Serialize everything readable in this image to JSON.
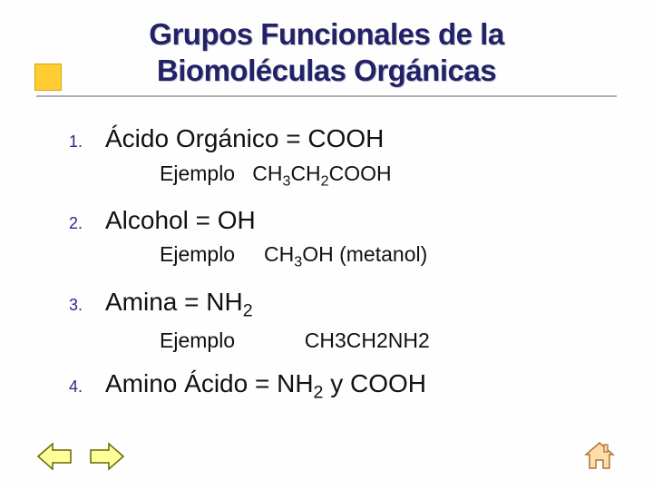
{
  "title": {
    "line1": "Grupos Funcionales de la",
    "line2": "Biomoléculas Orgánicas"
  },
  "colors": {
    "title_text": "#222266",
    "title_shadow": "#c8c8d8",
    "accent_fill": "#ffcc33",
    "accent_border": "#d9a800",
    "underline": "#b0b0b0",
    "number": "#2a2a88",
    "body_text": "#111111",
    "arrow_stroke": "#666600",
    "arrow_fill": "#ffff99",
    "home_stroke": "#aa7733",
    "home_fill": "#ffddaa"
  },
  "items": [
    {
      "n": "1.",
      "label_html": "Ácido Orgánico = COOH",
      "example_html": "Ejemplo&nbsp;&nbsp;&nbsp;CH<sub>3</sub>CH<sub>2</sub>COOH"
    },
    {
      "n": "2.",
      "label_html": "Alcohol = OH",
      "example_html": "Ejemplo&nbsp;&nbsp;&nbsp;&nbsp;&nbsp;CH<sub>3</sub>OH (metanol)"
    },
    {
      "n": "3.",
      "label_html": "Amina = NH<sub>2</sub>",
      "example_html": "Ejemplo&nbsp;&nbsp;&nbsp;&nbsp;&nbsp;&nbsp;&nbsp;&nbsp;&nbsp;&nbsp;&nbsp;&nbsp;CH3CH2NH2"
    },
    {
      "n": "4.",
      "label_html": "Amino Ácido = NH<sub>2</sub> y COOH",
      "example_html": ""
    }
  ],
  "nav": {
    "prev": "previous-slide",
    "next": "next-slide",
    "home": "first-slide"
  }
}
